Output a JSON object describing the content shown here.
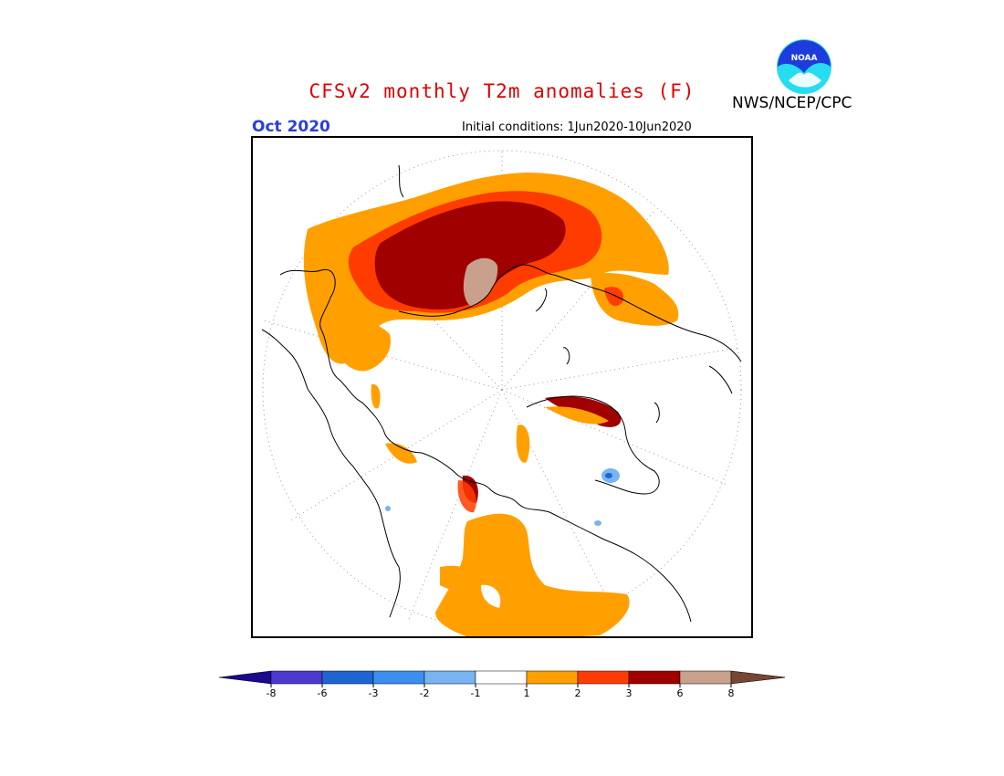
{
  "header": {
    "title": "CFSv2 monthly T2m anomalies (F)",
    "agency": "NWS/NCEP/CPC",
    "logo_text": "NOAA",
    "valid_month": "Oct 2020",
    "initial_conditions": "Initial conditions: 1Jun2020-10Jun2020"
  },
  "legend": {
    "ticks": [
      "-8",
      "-6",
      "-3",
      "-2",
      "-1",
      "1",
      "2",
      "3",
      "6",
      "8"
    ],
    "bins": [
      {
        "color": "#1a0a8c"
      },
      {
        "color": "#4b3ad0"
      },
      {
        "color": "#1e64d2"
      },
      {
        "color": "#3c8ef0"
      },
      {
        "color": "#78b4f2"
      },
      {
        "color": "#ffffff"
      },
      {
        "color": "#ffa000"
      },
      {
        "color": "#ff3c00"
      },
      {
        "color": "#a00000"
      },
      {
        "color": "#c8a08c"
      },
      {
        "color": "#784632"
      }
    ]
  },
  "colors": {
    "accent_title": "#e00000",
    "month": "#2a3fdc",
    "logo_blue": "#1e3cdc",
    "logo_cyan": "#28dcf0"
  }
}
